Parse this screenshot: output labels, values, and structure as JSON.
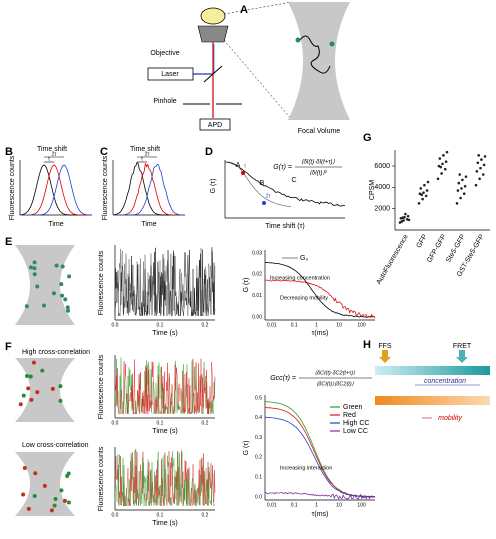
{
  "panel_labels": [
    "A",
    "B",
    "C",
    "D",
    "E",
    "F",
    "G",
    "H"
  ],
  "a": {
    "objective": "Objective",
    "laser": "Laser",
    "pinhole": "Pinhole",
    "apd": "APD",
    "focal_volume": "Focal Volume"
  },
  "b": {
    "time_shift": "Time shift",
    "two_tau": "2τ",
    "tau": "τ",
    "y_label": "Fluorescence counts",
    "x_label": "Time"
  },
  "c": {
    "time_shift": "Time shift",
    "two_tau": "2τ",
    "tau": "τ",
    "y_label": "Fluorescence counts",
    "x_label": "Time"
  },
  "d": {
    "y_label": "G (τ)",
    "x_label": "Time shift (τ)",
    "formula_lhs": "G(τ) =",
    "formula_num": "⟨δI(t)·δI(t+τ)⟩",
    "formula_den": "⟨δI(t)⟩²",
    "point_labels": [
      "A",
      "B",
      "C"
    ],
    "tau": "τ",
    "two_tau": "2τ"
  },
  "e": {
    "trace": {
      "y_label": "Fluorescence counts",
      "x_label": "Time (s)",
      "xticks": [
        "0.0",
        "0.1",
        "0.2"
      ]
    },
    "acf": {
      "y_label": "G (τ)",
      "x_label": "τ(ms)",
      "yticks": [
        "0.00",
        "0.01",
        "0.02",
        "0.03"
      ],
      "xticks": [
        "0.01",
        "0.1",
        "1",
        "10",
        "100"
      ],
      "g0": "G₀",
      "concentration": "Increasing concentration",
      "mobility": "Decreasing mobility"
    }
  },
  "f": {
    "high": "High cross-correlation",
    "low": "Low cross-correlation",
    "trace": {
      "y_label": "Fluorescence counts",
      "x_label": "Time (s)",
      "xticks": [
        "0.0",
        "0.1",
        "0.2"
      ]
    },
    "acf": {
      "formula_lhs": "Gcc(τ) =",
      "formula_num": "⟨δCI(t)·δC2(t+τ)⟩",
      "formula_den": "⟨δCI(t)⟩⟨δC2(t)⟩",
      "y_label": "G (τ)",
      "x_label": "τ(ms)",
      "yticks": [
        "0.0",
        "0.1",
        "0.2",
        "0.3",
        "0.4",
        "0.5"
      ],
      "xticks": [
        "0.01",
        "0.1",
        "1",
        "10",
        "100"
      ],
      "legend": [
        "Green",
        "Red",
        "High CC",
        "Low CC"
      ],
      "interaction": "Increasing interaction"
    }
  },
  "g": {
    "chart_data": {
      "type": "scatter",
      "y_label": "CPSM",
      "categories": [
        "AutoFluorescence",
        "GFP",
        "GFP-GFP",
        "Ste5-GFP",
        "GST-Ste5-GFP"
      ],
      "series": [
        {
          "values": [
            700,
            900,
            1000,
            1100,
            1200,
            1300,
            800,
            1500,
            950,
            1150
          ]
        },
        {
          "values": [
            2500,
            2900,
            3200,
            3400,
            3500,
            3700,
            3900,
            4200,
            4500,
            3300
          ]
        },
        {
          "values": [
            4800,
            5300,
            5700,
            6000,
            6200,
            6400,
            6700,
            7000,
            7300,
            5900
          ]
        },
        {
          "values": [
            2500,
            3000,
            3400,
            3700,
            3900,
            4100,
            4400,
            4700,
            5000,
            5200
          ]
        },
        {
          "values": [
            4200,
            4800,
            5200,
            5500,
            5800,
            6100,
            6300,
            6600,
            6900,
            7000
          ]
        }
      ],
      "color": "#222",
      "ylim": [
        0,
        7500
      ],
      "yticks": [
        2000,
        4000,
        6000
      ]
    }
  },
  "h": {
    "ffs": "FFS",
    "fret": "FRET",
    "concentration": "concentration",
    "mobility": "mobility"
  }
}
